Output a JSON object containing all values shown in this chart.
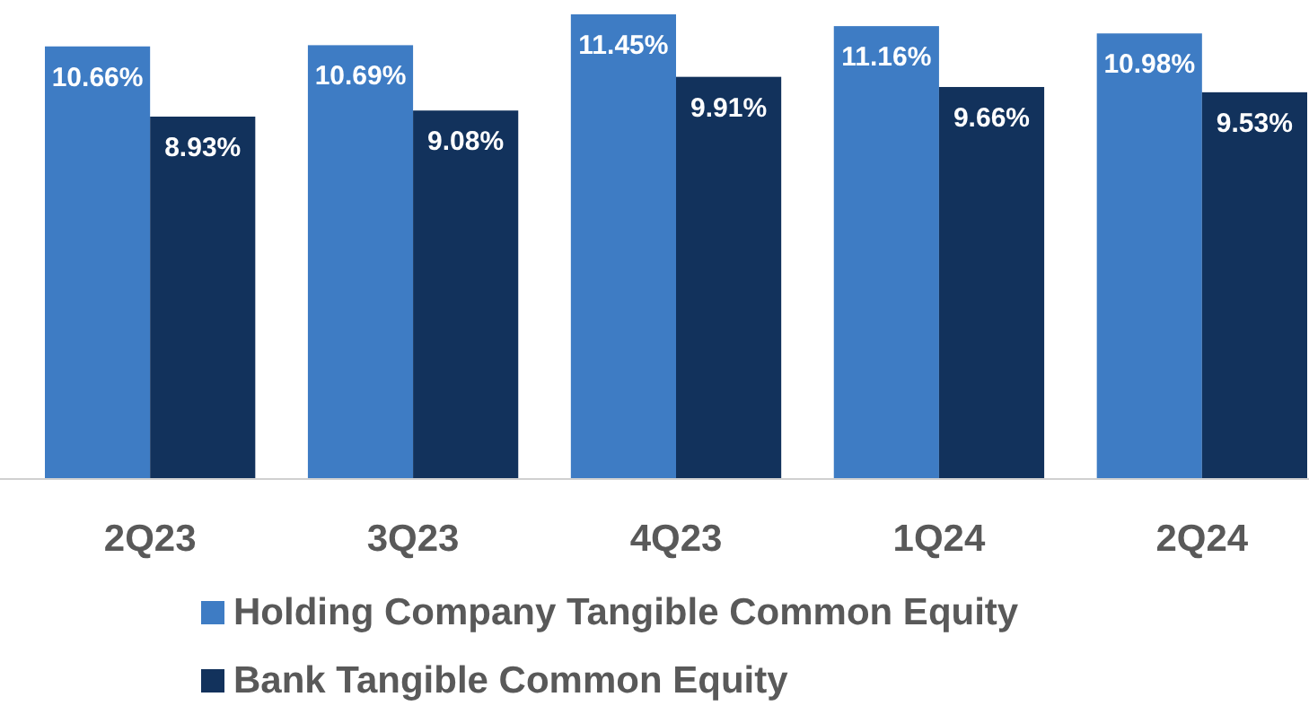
{
  "chart_data": {
    "type": "bar",
    "categories": [
      "2Q23",
      "3Q23",
      "4Q23",
      "1Q24",
      "2Q24"
    ],
    "series": [
      {
        "name": "Holding Company Tangible Common Equity",
        "color": "#3e7cc4",
        "values": [
          10.66,
          10.69,
          11.45,
          11.16,
          10.98
        ],
        "value_labels": [
          "10.66%",
          "10.69%",
          "11.45%",
          "11.16%",
          "10.98%"
        ]
      },
      {
        "name": "Bank Tangible Common Equity",
        "color": "#12325c",
        "values": [
          8.93,
          9.08,
          9.91,
          9.66,
          9.53
        ],
        "value_labels": [
          "8.93%",
          "9.08%",
          "9.91%",
          "9.66%",
          "9.53%"
        ]
      }
    ],
    "legend": "bottom"
  }
}
